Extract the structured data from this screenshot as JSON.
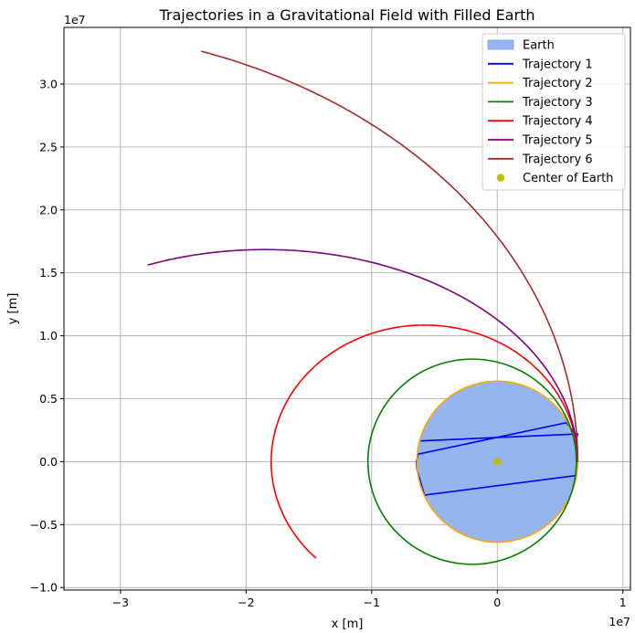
{
  "chart_data": {
    "type": "line",
    "title": "Trajectories in a Gravitational Field with Filled Earth",
    "xlabel": "x [m]",
    "ylabel": "y [m]",
    "x_offset_label": "1e7",
    "y_offset_label": "1e7",
    "xlim": [
      -34500000.0,
      10600000.0
    ],
    "ylim": [
      -10200000.0,
      34500000.0
    ],
    "x_ticks": [
      -30000000.0,
      -20000000.0,
      -10000000.0,
      0,
      10000000.0
    ],
    "x_tick_labels": [
      "−3",
      "−2",
      "−1",
      "0",
      "1"
    ],
    "y_ticks": [
      -10000000.0,
      -5000000.0,
      0,
      5000000.0,
      10000000.0,
      15000000.0,
      20000000.0,
      25000000.0,
      30000000.0
    ],
    "y_tick_labels": [
      "−1.0",
      "−0.5",
      "0.0",
      "0.5",
      "1.0",
      "1.5",
      "2.0",
      "2.5",
      "3.0"
    ],
    "grid": true,
    "legend_position": "top-right",
    "earth": {
      "name": "Earth",
      "center": [
        0,
        0
      ],
      "radius": 6400000.0,
      "fill": "#94b5f0",
      "edge": "#f5a623"
    },
    "center_marker": {
      "name": "Center of Earth",
      "x": 0,
      "y": 0,
      "color": "#bfbf00"
    },
    "series": [
      {
        "name": "Trajectory 1",
        "color": "#0000ff",
        "points": [
          [
            6400000.0,
            0
          ],
          [
            6300000.0,
            -1100000.0
          ],
          [
            -5800000.0,
            -2650000.0
          ],
          [
            -6400000.0,
            -600000.0
          ],
          [
            -6450000.0,
            0
          ],
          [
            -6300000.0,
            600000.0
          ],
          [
            5500000.0,
            3100000.0
          ],
          [
            6350000.0,
            2000000.0
          ],
          [
            6400000.0,
            2200000.0
          ],
          [
            -6100000.0,
            1650000.0
          ]
        ]
      },
      {
        "name": "Trajectory 2",
        "color": "#ffa500",
        "circle": {
          "center": [
            0,
            0
          ],
          "radius": 6400000.0
        }
      },
      {
        "name": "Trajectory 3",
        "color": "#008000",
        "ellipse": {
          "center": [
            -2000000.0,
            0
          ],
          "rx": 8300000.0,
          "ry": 8150000.0
        }
      },
      {
        "name": "Trajectory 4",
        "color": "#ff0000",
        "arc": {
          "center": [
            -5800000.0,
            0
          ],
          "rx": 12200000.0,
          "ry": 10850000.0,
          "start_deg": 0,
          "end_deg": 225
        }
      },
      {
        "name": "Trajectory 5",
        "color": "#800080",
        "arc": {
          "center": [
            -18500000.0,
            0
          ],
          "rx": 24900000.0,
          "ry": 16850000.0,
          "start_deg": 0,
          "end_deg": 112
        }
      },
      {
        "name": "Trajectory 6",
        "color": "#a52a2a",
        "arc": {
          "center": [
            -37600000.0,
            0
          ],
          "rx": 44000000.0,
          "ry": 34400000.0,
          "start_deg": 0,
          "end_deg": 71.4
        }
      }
    ]
  }
}
